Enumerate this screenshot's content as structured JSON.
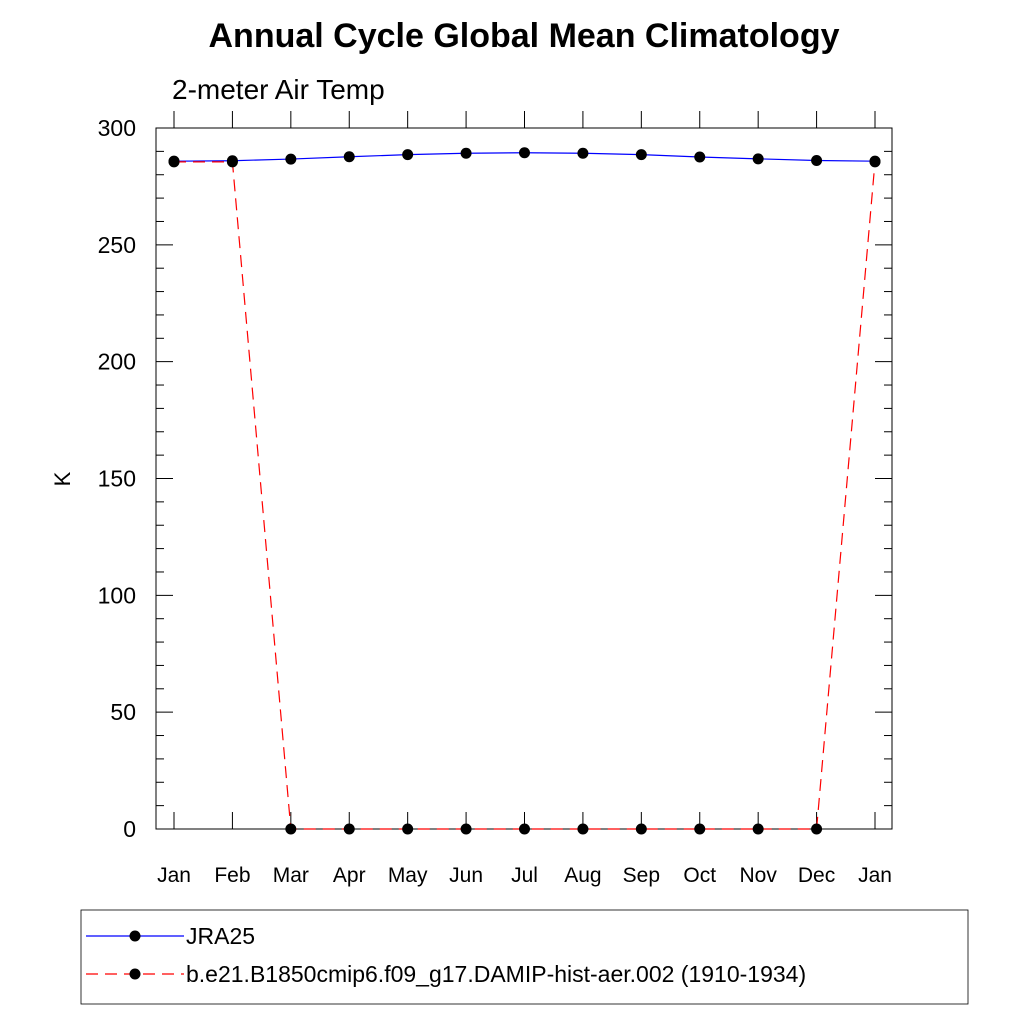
{
  "chart_data": {
    "type": "line",
    "title": "Annual Cycle Global Mean Climatology",
    "subtitle": "2-meter Air Temp",
    "xlabel": "",
    "ylabel": "K",
    "ylim": [
      0,
      300
    ],
    "yticks": [
      "0",
      "50",
      "100",
      "150",
      "200",
      "250",
      "300"
    ],
    "categories": [
      "Jan",
      "Feb",
      "Mar",
      "Apr",
      "May",
      "Jun",
      "Jul",
      "Aug",
      "Sep",
      "Oct",
      "Nov",
      "Dec",
      "Jan"
    ],
    "grid": false,
    "legend_position": "bottom",
    "series": [
      {
        "name": "JRA25",
        "color": "#0000ff",
        "line_style": "solid",
        "marker": "filled-circle",
        "values": [
          285.8,
          286.0,
          286.7,
          287.7,
          288.6,
          289.2,
          289.4,
          289.2,
          288.6,
          287.6,
          286.8,
          286.1,
          285.8
        ]
      },
      {
        "name": "b.e21.B1850cmip6.f09_g17.DAMIP-hist-aer.002 (1910-1934)",
        "color": "#ff0000",
        "line_style": "dashed",
        "marker": "filled-circle",
        "values": [
          285.5,
          285.5,
          0,
          0,
          0,
          0,
          0,
          0,
          0,
          0,
          0,
          0,
          285.5
        ]
      }
    ]
  }
}
